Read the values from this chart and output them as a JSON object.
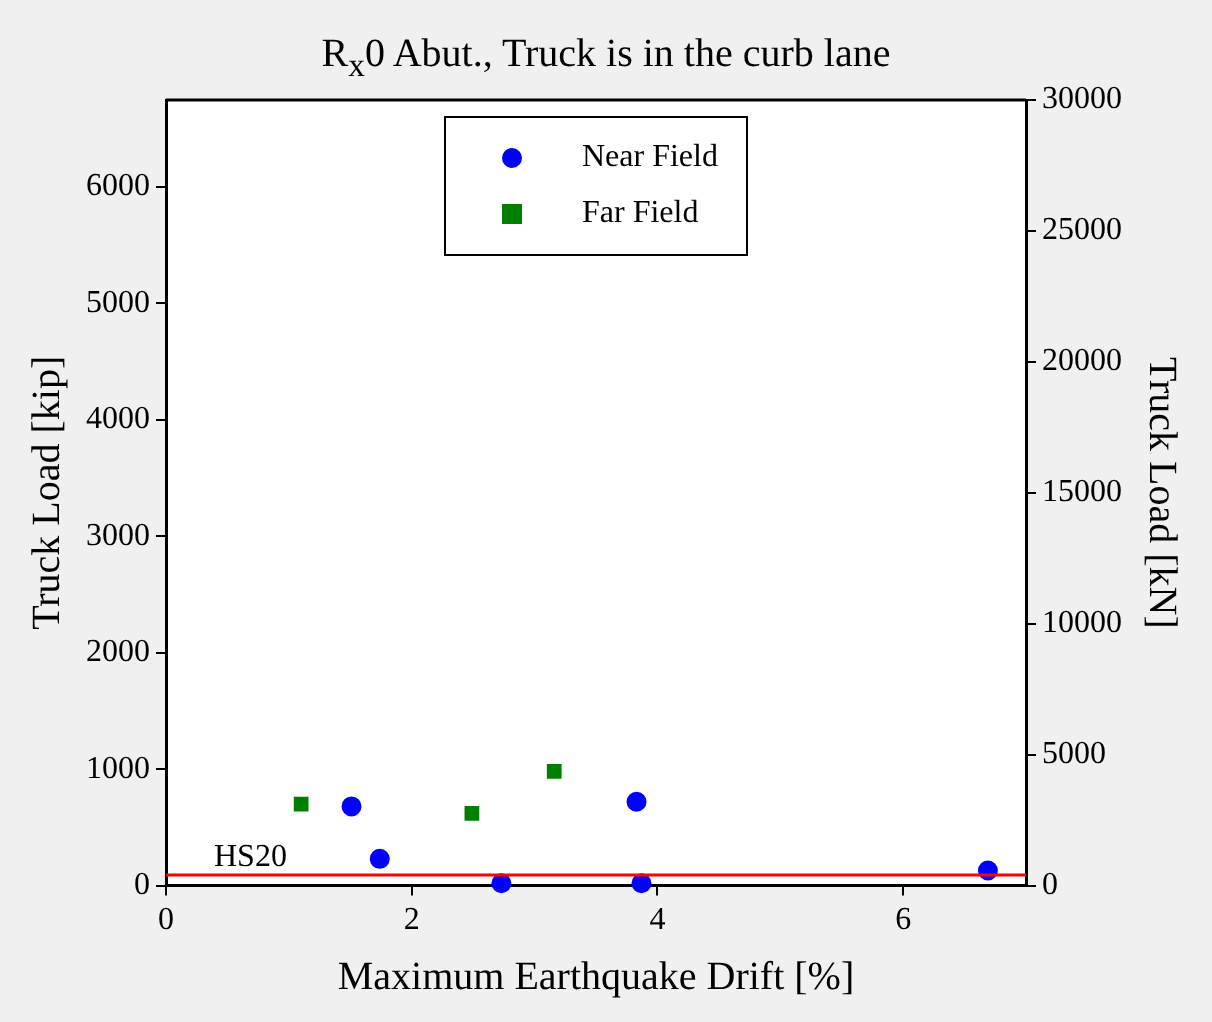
{
  "chart_data": {
    "type": "scatter",
    "title": "R$_{x}$0 Abut., Truck is in the curb lane",
    "xlabel": "Maximum Earthquake Drift [%]",
    "ylabel": "Truck Load [kip]",
    "y2label": "Truck Load [kN]",
    "xlim": [
      0,
      7
    ],
    "xticks": [
      0,
      2,
      4,
      6
    ],
    "ylim": [
      0,
      6744
    ],
    "yticks": [
      0,
      1000,
      2000,
      3000,
      4000,
      5000,
      6000
    ],
    "y2lim": [
      0,
      30000
    ],
    "y2ticks": [
      0,
      5000,
      10000,
      15000,
      20000,
      25000,
      30000
    ],
    "grid": false,
    "legend": "top",
    "series": [
      {
        "name": "Near Field",
        "color": "#0000ff",
        "marker": "circle",
        "x": [
          1.51,
          1.74,
          2.73,
          3.83,
          3.87,
          6.69
        ],
        "values": [
          680,
          230,
          20,
          720,
          20,
          130
        ]
      },
      {
        "name": "Far Field",
        "color": "#008000",
        "marker": "square",
        "x": [
          1.1,
          2.49,
          3.16
        ],
        "values": [
          700,
          620,
          980
        ]
      }
    ],
    "ref_lines": [
      {
        "axis": "y",
        "value": 90,
        "label": "HS20",
        "color": "#ff0000"
      }
    ]
  }
}
